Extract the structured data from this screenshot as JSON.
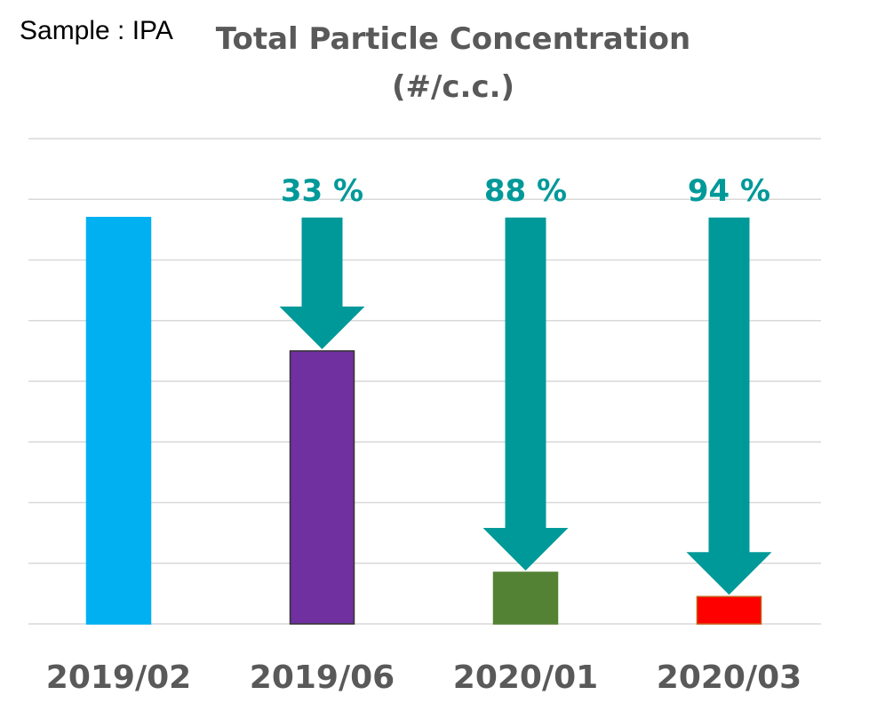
{
  "sample_label": "Sample : IPA",
  "chart_data": {
    "type": "bar",
    "title": [
      "Total Particle Concentration",
      "(#/c.c.)"
    ],
    "xlabel": "",
    "ylabel": "",
    "grid": true,
    "ylim": [
      0,
      8
    ],
    "categories": [
      "2019/02",
      "2019/06",
      "2020/01",
      "2020/03"
    ],
    "values": [
      6.7,
      4.5,
      0.85,
      0.45
    ],
    "colors": [
      "#00B0F0",
      "#7030A0",
      "#548235",
      "#FF0000"
    ],
    "reductions": [
      null,
      "33 %",
      "88 %",
      "94 %"
    ],
    "arrow_color": "#009999",
    "label_color": "#009999",
    "tick_color": "#595959"
  }
}
